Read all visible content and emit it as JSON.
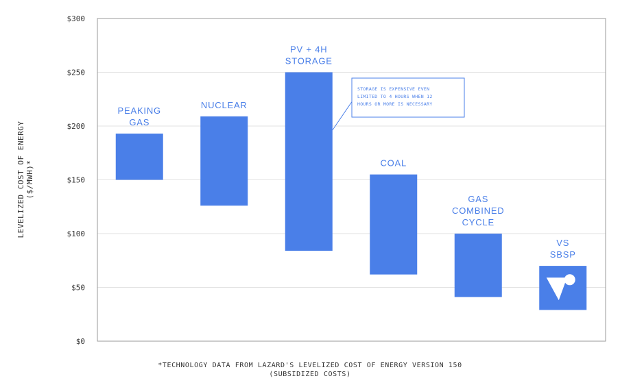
{
  "colors": {
    "bar": "#4a7fe8",
    "grid": "#e2e2e2",
    "frame": "#9a9a9a",
    "text": "#333333",
    "label": "#4a7fe8"
  },
  "chart_data": {
    "type": "bar",
    "subtype": "floating-range",
    "ylabel": [
      "LEVELIZED COST OF ENERGY",
      "($/MWH)*"
    ],
    "ylim": [
      0,
      300
    ],
    "yticks": [
      0,
      50,
      100,
      150,
      200,
      250,
      300
    ],
    "ytick_labels": [
      "$0",
      "$50",
      "$100",
      "$150",
      "$200",
      "$250",
      "$300"
    ],
    "grid": true,
    "categories": [
      {
        "label": [
          "PEAKING",
          "GAS"
        ],
        "low": 150,
        "high": 193
      },
      {
        "label": [
          "NUCLEAR"
        ],
        "low": 126,
        "high": 209
      },
      {
        "label": [
          "PV + 4H",
          "STORAGE"
        ],
        "low": 84,
        "high": 250
      },
      {
        "label": [
          "COAL"
        ],
        "low": 62,
        "high": 155
      },
      {
        "label": [
          "GAS",
          "COMBINED",
          "CYCLE"
        ],
        "low": 41,
        "high": 100
      },
      {
        "label": [
          "VS",
          "SBSP"
        ],
        "low": 29,
        "high": 70,
        "logo": "vs-logo-icon"
      }
    ],
    "annotation": {
      "target_category": 2,
      "lines": [
        "STORAGE IS EXPENSIVE EVEN",
        "LIMITED TO 4 HOURS WHEN 12",
        "HOURS OR MORE IS NECESSARY"
      ]
    }
  },
  "footnote": {
    "line1": "*TECHNOLOGY DATA FROM LAZARD'S LEVELIZED COST OF ENERGY VERSION 150",
    "line2": "(SUBSIDIZED COSTS)"
  }
}
